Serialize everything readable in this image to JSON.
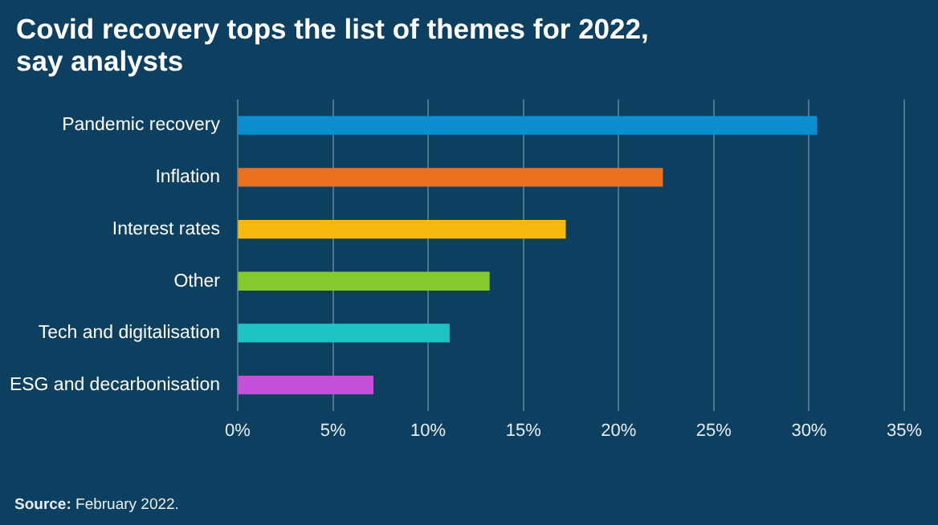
{
  "chart_data": {
    "type": "bar",
    "orientation": "horizontal",
    "title": "Covid recovery tops the list of themes for 2022, say analysts",
    "categories": [
      "Pandemic recovery",
      "Inflation",
      "Interest rates",
      "Other",
      "Tech and digitalisation",
      "ESG and decarbonisation"
    ],
    "values": [
      30.4,
      22.3,
      17.2,
      13.2,
      11.1,
      7.1
    ],
    "colors": [
      "#0b8fd1",
      "#e9701f",
      "#f6b90f",
      "#86c92e",
      "#1ec4c4",
      "#c44fd9"
    ],
    "xlim": [
      0,
      35
    ],
    "xticks": [
      {
        "value": 0,
        "label": "0%"
      },
      {
        "value": 5,
        "label": "5%"
      },
      {
        "value": 10,
        "label": "10%"
      },
      {
        "value": 15,
        "label": "15%"
      },
      {
        "value": 20,
        "label": "20%"
      },
      {
        "value": 25,
        "label": "25%"
      },
      {
        "value": 30,
        "label": "30%"
      },
      {
        "value": 35,
        "label": "35%"
      }
    ],
    "grid": "x",
    "legend": false,
    "annotations": [
      "Source: February 2022."
    ]
  }
}
